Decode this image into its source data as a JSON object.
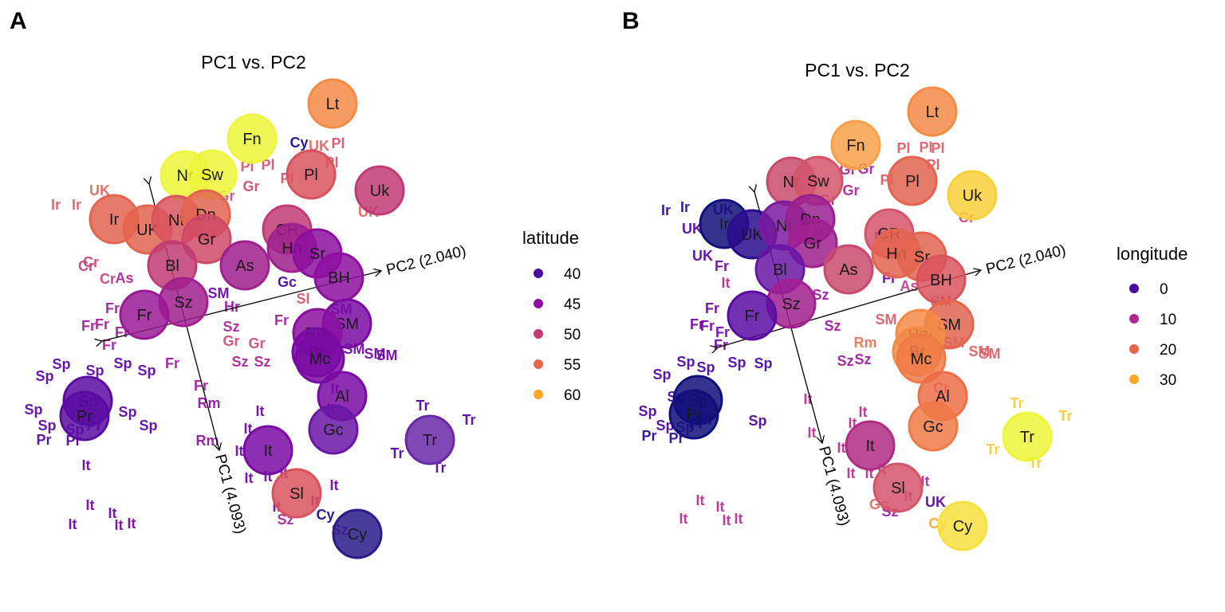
{
  "chart_data": [
    {
      "panel_letter": "A",
      "type": "scatter",
      "title": "PC1 vs. PC2",
      "legend": {
        "title": "latitude",
        "placement": "right",
        "entries": [
          {
            "label": "40",
            "color": "#4a0c9e"
          },
          {
            "label": "45",
            "color": "#8c0f9f"
          },
          {
            "label": "50",
            "color": "#c13c74"
          },
          {
            "label": "55",
            "color": "#e8664a"
          },
          {
            "label": "60",
            "color": "#fba628"
          }
        ]
      },
      "axes": [
        {
          "label": "PC2 (2.040)"
        },
        {
          "label": "PC1 (4.093)"
        }
      ],
      "group_centroids": [
        {
          "label": "Lt",
          "value": 56,
          "color": "#f48b47"
        },
        {
          "label": "Fn",
          "value": 62,
          "color": "#eef53a"
        },
        {
          "label": "Nr",
          "value": 61,
          "color": "#eef53a"
        },
        {
          "label": "Sw",
          "value": 60,
          "color": "#eef53a"
        },
        {
          "label": "Pl",
          "value": 52,
          "color": "#d9535e"
        },
        {
          "label": "Uk",
          "value": 49,
          "color": "#c13c74"
        },
        {
          "label": "Ir",
          "value": 53,
          "color": "#e3644f"
        },
        {
          "label": "UK",
          "value": 54,
          "color": "#e3644f"
        },
        {
          "label": "Nt",
          "value": 52,
          "color": "#d9535e"
        },
        {
          "label": "Dn",
          "value": 55,
          "color": "#e3644f"
        },
        {
          "label": "Gr",
          "value": 51,
          "color": "#cf4a66"
        },
        {
          "label": "CR",
          "value": 50,
          "color": "#c13c74"
        },
        {
          "label": "Hn",
          "value": 47,
          "color": "#a0208f"
        },
        {
          "label": "Sr",
          "value": 44,
          "color": "#8c0f9f"
        },
        {
          "label": "Bl",
          "value": 50,
          "color": "#c13c74"
        },
        {
          "label": "As",
          "value": 47,
          "color": "#a0208f"
        },
        {
          "label": "BH",
          "value": 44,
          "color": "#8c0f9f"
        },
        {
          "label": "Sz",
          "value": 47,
          "color": "#a0208f"
        },
        {
          "label": "Fr",
          "value": 46,
          "color": "#9a1a96"
        },
        {
          "label": "SM",
          "value": 42,
          "color": "#7a0aa4"
        },
        {
          "label": "Rm",
          "value": 45,
          "color": "#8c0f9f"
        },
        {
          "label": "Br",
          "value": 42,
          "color": "#7a0aa4"
        },
        {
          "label": "Mc",
          "value": 41,
          "color": "#7a0aa4"
        },
        {
          "label": "Sp",
          "value": 40,
          "color": "#5a0ca2"
        },
        {
          "label": "Pr",
          "value": 39,
          "color": "#5a0ca2"
        },
        {
          "label": "Al",
          "value": 41,
          "color": "#7a0aa4"
        },
        {
          "label": "Gc",
          "value": 39,
          "color": "#6a16a6"
        },
        {
          "label": "Tr",
          "value": 39,
          "color": "#6a28a8"
        },
        {
          "label": "It",
          "value": 42,
          "color": "#7a0aa4"
        },
        {
          "label": "Sl",
          "value": 52,
          "color": "#d9535e"
        },
        {
          "label": "Cy",
          "value": 35,
          "color": "#2a1a8a"
        }
      ],
      "individual_labels": [
        {
          "label": "It",
          "value": 42
        },
        {
          "label": "It",
          "value": 42
        },
        {
          "label": "It",
          "value": 42
        },
        {
          "label": "It",
          "value": 42
        },
        {
          "label": "It",
          "value": 42
        },
        {
          "label": "It",
          "value": 42
        },
        {
          "label": "Sp",
          "value": 40
        },
        {
          "label": "Sp",
          "value": 40
        },
        {
          "label": "Sp",
          "value": 40
        },
        {
          "label": "Sp",
          "value": 40
        },
        {
          "label": "Sp",
          "value": 40
        },
        {
          "label": "Sp",
          "value": 40
        },
        {
          "label": "Sp",
          "value": 40
        },
        {
          "label": "Sp",
          "value": 40
        },
        {
          "label": "Sp",
          "value": 40
        },
        {
          "label": "Sp",
          "value": 40
        },
        {
          "label": "Pr",
          "value": 39
        },
        {
          "label": "Pr",
          "value": 39
        },
        {
          "label": "Pr",
          "value": 39
        },
        {
          "label": "Pr",
          "value": 39
        },
        {
          "label": "Tr",
          "value": 39
        },
        {
          "label": "Tr",
          "value": 39
        },
        {
          "label": "Tr",
          "value": 39
        },
        {
          "label": "Tr",
          "value": 39
        },
        {
          "label": "Ir",
          "value": 53
        },
        {
          "label": "Ir",
          "value": 53
        },
        {
          "label": "UK",
          "value": 54
        },
        {
          "label": "UK",
          "value": 54
        },
        {
          "label": "Cr",
          "value": 50
        },
        {
          "label": "Fr",
          "value": 46
        },
        {
          "label": "Fr",
          "value": 46
        },
        {
          "label": "Fr",
          "value": 46
        },
        {
          "label": "Fr",
          "value": 46
        },
        {
          "label": "Fr",
          "value": 46
        },
        {
          "label": "Fr",
          "value": 46
        },
        {
          "label": "SM",
          "value": 42
        },
        {
          "label": "SM",
          "value": 42
        },
        {
          "label": "SM",
          "value": 42
        },
        {
          "label": "SM",
          "value": 42
        },
        {
          "label": "SM",
          "value": 42
        },
        {
          "label": "Sz",
          "value": 47
        },
        {
          "label": "Sz",
          "value": 47
        },
        {
          "label": "Sz",
          "value": 47
        },
        {
          "label": "Sz",
          "value": 47
        },
        {
          "label": "Sz",
          "value": 47
        },
        {
          "label": "Cy",
          "value": 35
        },
        {
          "label": "Cy",
          "value": 35
        },
        {
          "label": "UK",
          "value": 54
        },
        {
          "label": "Pl",
          "value": 52
        },
        {
          "label": "Pl",
          "value": 52
        },
        {
          "label": "Pl",
          "value": 52
        },
        {
          "label": "Pl",
          "value": 52
        },
        {
          "label": "Pl",
          "value": 52
        },
        {
          "label": "Gr",
          "value": 51
        },
        {
          "label": "Gr",
          "value": 51
        },
        {
          "label": "Gr",
          "value": 51
        },
        {
          "label": "Gr",
          "value": 51
        },
        {
          "label": "Rm",
          "value": 45
        },
        {
          "label": "Rm",
          "value": 45
        },
        {
          "label": "It",
          "value": 42
        },
        {
          "label": "It",
          "value": 42
        },
        {
          "label": "It",
          "value": 42
        },
        {
          "label": "It",
          "value": 42
        },
        {
          "label": "It",
          "value": 42
        },
        {
          "label": "It",
          "value": 42
        },
        {
          "label": "It",
          "value": 42
        },
        {
          "label": "It",
          "value": 42
        },
        {
          "label": "It",
          "value": 42
        },
        {
          "label": "It",
          "value": 42
        },
        {
          "label": "It",
          "value": 42
        },
        {
          "label": "Sl",
          "value": 52
        },
        {
          "label": "Gc",
          "value": 39
        },
        {
          "label": "Al",
          "value": 41
        },
        {
          "label": "Hr",
          "value": 45
        },
        {
          "label": "Cr",
          "value": 50
        },
        {
          "label": "Cr",
          "value": 50
        },
        {
          "label": "As",
          "value": 47
        },
        {
          "label": "Fr",
          "value": 46
        },
        {
          "label": "Fr",
          "value": 46
        },
        {
          "label": "Fr",
          "value": 46
        },
        {
          "label": "It",
          "value": 42
        },
        {
          "label": "It",
          "value": 42
        }
      ]
    },
    {
      "panel_letter": "B",
      "type": "scatter",
      "title": "PC1 vs. PC2",
      "legend": {
        "title": "longitude",
        "placement": "right",
        "entries": [
          {
            "label": "0",
            "color": "#4a0c9e"
          },
          {
            "label": "10",
            "color": "#b0258f"
          },
          {
            "label": "20",
            "color": "#e3644f"
          },
          {
            "label": "30",
            "color": "#fba628"
          }
        ]
      },
      "axes": [
        {
          "label": "PC2 (2.040)"
        },
        {
          "label": "PC1 (4.093)"
        }
      ],
      "group_centroids": [
        {
          "label": "Lt",
          "value": 24,
          "color": "#f48b47"
        },
        {
          "label": "Fn",
          "value": 25,
          "color": "#f8a048"
        },
        {
          "label": "Nr",
          "value": 10,
          "color": "#c84a6e"
        },
        {
          "label": "Sw",
          "value": 15,
          "color": "#d4556a"
        },
        {
          "label": "Pl",
          "value": 20,
          "color": "#e3644f"
        },
        {
          "label": "Uk",
          "value": 31,
          "color": "#f8d03a"
        },
        {
          "label": "Ir",
          "value": -8,
          "color": "#10107a"
        },
        {
          "label": "UK",
          "value": -2,
          "color": "#2a0c8e"
        },
        {
          "label": "Nt",
          "value": 5,
          "color": "#7a1aa0"
        },
        {
          "label": "Dn",
          "value": 10,
          "color": "#9a2092"
        },
        {
          "label": "Gr",
          "value": 10,
          "color": "#a0208f"
        },
        {
          "label": "CR",
          "value": 15,
          "color": "#d4556a"
        },
        {
          "label": "Hn",
          "value": 19,
          "color": "#e3644f"
        },
        {
          "label": "Sr",
          "value": 20,
          "color": "#e3644f"
        },
        {
          "label": "Bl",
          "value": 4,
          "color": "#6a16a6"
        },
        {
          "label": "As",
          "value": 14,
          "color": "#c84a6e"
        },
        {
          "label": "BH",
          "value": 18,
          "color": "#d9535e"
        },
        {
          "label": "Sz",
          "value": 8,
          "color": "#a0208f"
        },
        {
          "label": "Fr",
          "value": 2,
          "color": "#5a0ca2"
        },
        {
          "label": "SM",
          "value": 20,
          "color": "#e3644f"
        },
        {
          "label": "Rm",
          "value": 24,
          "color": "#f48b47"
        },
        {
          "label": "Br",
          "value": 23,
          "color": "#f48b47"
        },
        {
          "label": "Mc",
          "value": 22,
          "color": "#f07a46"
        },
        {
          "label": "Sp",
          "value": -4,
          "color": "#10107a"
        },
        {
          "label": "Pr",
          "value": -8,
          "color": "#10107a"
        },
        {
          "label": "Al",
          "value": 20,
          "color": "#ec6d47"
        },
        {
          "label": "Gc",
          "value": 22,
          "color": "#f07a46"
        },
        {
          "label": "Tr",
          "value": 36,
          "color": "#eef53a"
        },
        {
          "label": "It",
          "value": 12,
          "color": "#b02c84"
        },
        {
          "label": "Sl",
          "value": 15,
          "color": "#d4556a"
        },
        {
          "label": "Cy",
          "value": 33,
          "color": "#f8e040"
        }
      ],
      "individual_labels": [
        {
          "label": "It",
          "value": 12
        },
        {
          "label": "It",
          "value": 12
        },
        {
          "label": "It",
          "value": 12
        },
        {
          "label": "It",
          "value": 12
        },
        {
          "label": "It",
          "value": 12
        },
        {
          "label": "Sp",
          "value": -4
        },
        {
          "label": "Sp",
          "value": -4
        },
        {
          "label": "Sp",
          "value": -4
        },
        {
          "label": "Sp",
          "value": -4
        },
        {
          "label": "Sp",
          "value": -4
        },
        {
          "label": "Sp",
          "value": -4
        },
        {
          "label": "Sp",
          "value": -4
        },
        {
          "label": "Sp",
          "value": -4
        },
        {
          "label": "Sp",
          "value": -4
        },
        {
          "label": "Sp",
          "value": -4
        },
        {
          "label": "Pr",
          "value": -8
        },
        {
          "label": "Pr",
          "value": -8
        },
        {
          "label": "Pr",
          "value": -8
        },
        {
          "label": "Pr",
          "value": -8
        },
        {
          "label": "Tr",
          "value": 36
        },
        {
          "label": "Tr",
          "value": 36
        },
        {
          "label": "Tr",
          "value": 36
        },
        {
          "label": "Tr",
          "value": 36
        },
        {
          "label": "Ir",
          "value": -8
        },
        {
          "label": "Ir",
          "value": -8
        },
        {
          "label": "UK",
          "value": -2
        },
        {
          "label": "UK",
          "value": -2
        },
        {
          "label": "UK",
          "value": -2
        },
        {
          "label": "UK",
          "value": -2
        },
        {
          "label": "Cr",
          "value": 15
        },
        {
          "label": "Fr",
          "value": 2
        },
        {
          "label": "Fr",
          "value": 2
        },
        {
          "label": "Fr",
          "value": 2
        },
        {
          "label": "Fr",
          "value": 2
        },
        {
          "label": "Fr",
          "value": 2
        },
        {
          "label": "Fr",
          "value": 2
        },
        {
          "label": "SM",
          "value": 20
        },
        {
          "label": "SM",
          "value": 20
        },
        {
          "label": "SM",
          "value": 20
        },
        {
          "label": "SM",
          "value": 20
        },
        {
          "label": "SM",
          "value": 20
        },
        {
          "label": "Sz",
          "value": 8
        },
        {
          "label": "Sz",
          "value": 8
        },
        {
          "label": "Sz",
          "value": 8
        },
        {
          "label": "Sz",
          "value": 8
        },
        {
          "label": "Sz",
          "value": 8
        },
        {
          "label": "Cy",
          "value": 33
        },
        {
          "label": "Pl",
          "value": 20
        },
        {
          "label": "Pl",
          "value": 20
        },
        {
          "label": "Pl",
          "value": 20
        },
        {
          "label": "Pl",
          "value": 20
        },
        {
          "label": "Pl",
          "value": 20
        },
        {
          "label": "Gr",
          "value": 10
        },
        {
          "label": "Gr",
          "value": 10
        },
        {
          "label": "Gr",
          "value": 10
        },
        {
          "label": "Gr",
          "value": 10
        },
        {
          "label": "Rm",
          "value": 24
        },
        {
          "label": "It",
          "value": 12
        },
        {
          "label": "It",
          "value": 12
        },
        {
          "label": "It",
          "value": 12
        },
        {
          "label": "It",
          "value": 12
        },
        {
          "label": "It",
          "value": 12
        },
        {
          "label": "It",
          "value": 12
        },
        {
          "label": "It",
          "value": 12
        },
        {
          "label": "It",
          "value": 12
        },
        {
          "label": "It",
          "value": 12
        },
        {
          "label": "It",
          "value": 12
        },
        {
          "label": "Gc",
          "value": 22
        },
        {
          "label": "Al",
          "value": 20
        },
        {
          "label": "Cr",
          "value": 15
        },
        {
          "label": "As",
          "value": 14
        },
        {
          "label": "Fr",
          "value": 2
        },
        {
          "label": "Fr",
          "value": 2
        },
        {
          "label": "It",
          "value": 12
        }
      ]
    }
  ]
}
